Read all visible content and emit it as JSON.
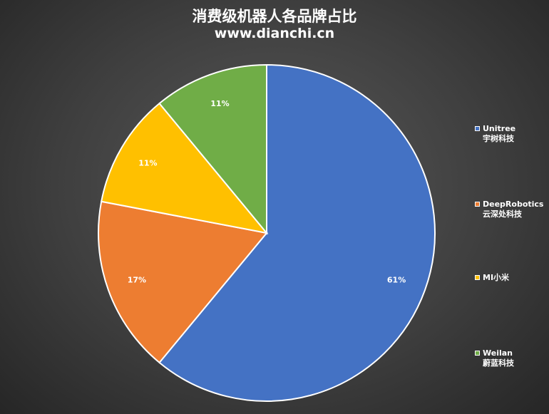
{
  "title": "消费级机器人各品牌占比",
  "subtitle": "www.dianchi.cn",
  "chart_data": {
    "type": "pie",
    "title": "消费级机器人各品牌占比",
    "subtitle": "www.dianchi.cn",
    "legend_position": "right",
    "slices": [
      {
        "label_line1": "Unitree",
        "label_line2": "宇树科技",
        "value": 61,
        "data_label": "61%",
        "color": "#4472C4"
      },
      {
        "label_line1": "DeepRobotics",
        "label_line2": "云深处科技",
        "value": 17,
        "data_label": "17%",
        "color": "#ED7D31"
      },
      {
        "label_line1": "MI小米",
        "label_line2": "",
        "value": 11,
        "data_label": "11%",
        "color": "#FFC000"
      },
      {
        "label_line1": "Weilan",
        "label_line2": "蔚蓝科技",
        "value": 11,
        "data_label": "11%",
        "color": "#70AD47"
      }
    ]
  }
}
